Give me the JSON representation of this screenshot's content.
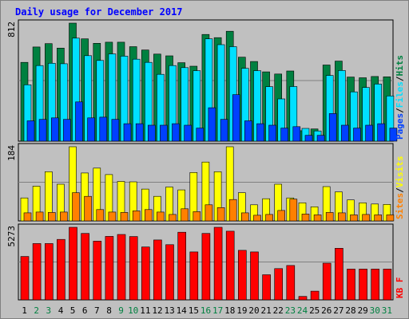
{
  "chart_data": [
    {
      "type": "bar",
      "title": "Daily usage for December 2017",
      "panel": "top",
      "ymax_label": "812",
      "categories": [
        "1",
        "2",
        "3",
        "4",
        "5",
        "6",
        "7",
        "8",
        "9",
        "10",
        "11",
        "12",
        "13",
        "14",
        "15",
        "16",
        "17",
        "18",
        "19",
        "20",
        "21",
        "22",
        "23",
        "24",
        "25",
        "26",
        "27",
        "28",
        "29",
        "30",
        "31"
      ],
      "weekend_days": [
        "2",
        "3",
        "9",
        "10",
        "16",
        "17",
        "23",
        "24",
        "30",
        "31"
      ],
      "series": [
        {
          "name": "Hits",
          "color": "#008040",
          "values": [
            542,
            648,
            671,
            640,
            812,
            704,
            673,
            681,
            681,
            650,
            627,
            599,
            587,
            540,
            516,
            734,
            712,
            756,
            578,
            548,
            477,
            462,
            483,
            72,
            84,
            524,
            551,
            441,
            436,
            445,
            443
          ]
        },
        {
          "name": "Files",
          "color": "#00e0ff",
          "values": [
            388,
            520,
            536,
            533,
            709,
            588,
            555,
            600,
            585,
            564,
            542,
            460,
            520,
            506,
            485,
            704,
            664,
            650,
            501,
            485,
            375,
            291,
            376,
            88,
            70,
            452,
            486,
            339,
            369,
            393,
            311
          ]
        },
        {
          "name": "Pages",
          "color": "#0040ff",
          "values": [
            140,
            150,
            160,
            150,
            270,
            160,
            165,
            150,
            120,
            120,
            110,
            110,
            120,
            110,
            90,
            230,
            150,
            320,
            140,
            120,
            110,
            90,
            100,
            40,
            40,
            190,
            110,
            90,
            110,
            120,
            90
          ]
        }
      ],
      "legend": [
        "Hits",
        "Files",
        "Pages"
      ]
    },
    {
      "type": "bar",
      "panel": "middle",
      "ymax_label": "184",
      "categories": [
        "1",
        "2",
        "3",
        "4",
        "5",
        "6",
        "7",
        "8",
        "9",
        "10",
        "11",
        "12",
        "13",
        "14",
        "15",
        "16",
        "17",
        "18",
        "19",
        "20",
        "21",
        "22",
        "23",
        "24",
        "25",
        "26",
        "27",
        "28",
        "29",
        "30",
        "31"
      ],
      "series": [
        {
          "name": "Visits",
          "color": "#ffff00",
          "values": [
            57,
            86,
            122,
            91,
            184,
            119,
            131,
            115,
            98,
            97,
            79,
            61,
            84,
            77,
            120,
            146,
            122,
            184,
            70,
            40,
            55,
            91,
            57,
            45,
            35,
            85,
            72,
            52,
            45,
            42,
            41
          ]
        },
        {
          "name": "Sites",
          "color": "#ff8000",
          "values": [
            20,
            22,
            21,
            22,
            70,
            61,
            28,
            22,
            21,
            25,
            28,
            22,
            16,
            30,
            23,
            40,
            33,
            53,
            20,
            14,
            16,
            26,
            54,
            17,
            15,
            21,
            20,
            15,
            16,
            15,
            15
          ]
        }
      ],
      "legend": [
        "Visits",
        "Sites"
      ]
    },
    {
      "type": "bar",
      "panel": "bottom",
      "ymax_label": "5273",
      "categories": [
        "1",
        "2",
        "3",
        "4",
        "5",
        "6",
        "7",
        "8",
        "9",
        "10",
        "11",
        "12",
        "13",
        "14",
        "15",
        "16",
        "17",
        "18",
        "19",
        "20",
        "21",
        "22",
        "23",
        "24",
        "25",
        "26",
        "27",
        "28",
        "29",
        "30",
        "31"
      ],
      "series": [
        {
          "name": "KB F",
          "color": "#ff0000",
          "values": [
            3152,
            4092,
            4089,
            4395,
            5273,
            4828,
            4265,
            4615,
            4751,
            4603,
            3844,
            4350,
            4010,
            4912,
            3481,
            4828,
            5273,
            4990,
            3600,
            3480,
            1824,
            2270,
            2495,
            250,
            630,
            2663,
            3750,
            2238,
            2238,
            2238,
            2238
          ]
        }
      ],
      "legend": [
        "KB F"
      ]
    }
  ],
  "colors": {
    "background": "#c0c0c0",
    "title": "#0000ff",
    "weekday_label": "#000000",
    "weekend_label": "#008040"
  }
}
